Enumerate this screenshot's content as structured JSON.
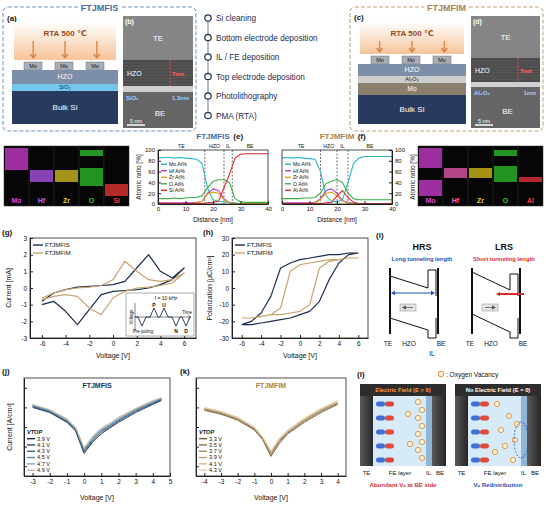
{
  "figure": {
    "a": {
      "label": "(a)",
      "box_title": "FTJMFIS",
      "anneal": "RTA 500 ℃",
      "top_electrode": "Mo",
      "fe": "HZO",
      "il": "SiO₂",
      "substrate": "Bulk Si"
    },
    "b": {
      "label": "(b)",
      "te": "TE",
      "fe": "HZO",
      "fe_thickness": "7nm",
      "il": "SiO₂",
      "il_thickness": "1.3nm",
      "be": "BE",
      "scale_bar": "5 nm"
    },
    "c": {
      "label": "(c)",
      "box_title": "FTJMFIM",
      "anneal": "RTA 500 ℃",
      "top_electrode": "Mo",
      "fe": "HZO",
      "il": "Al₂O₃",
      "bottom_electrode": "Mo",
      "substrate": "Bulk Si"
    },
    "d": {
      "label": "(d)",
      "te": "TE",
      "fe": "HZO",
      "fe_thickness": "7nm",
      "il": "Al₂O₃",
      "il_thickness": "1nm",
      "be": "BE",
      "scale_bar": "5 nm"
    },
    "process_flow": [
      "Si cleaning",
      "Bottom electrode deposition",
      "IL / FE deposition",
      "Top electrode deposition",
      "Photolithography",
      "PMA (RTA)"
    ],
    "eds_mfis": {
      "elements": [
        "Mo",
        "Hf",
        "Zr",
        "O",
        "Si"
      ],
      "colors": [
        "#e040e0",
        "#c060ff",
        "#e8d020",
        "#30d030",
        "#ff3a3a"
      ]
    },
    "eds_mfim": {
      "elements": [
        "Mo",
        "Hf",
        "Zr",
        "O",
        "Al"
      ],
      "colors": [
        "#e040e0",
        "#ff60c0",
        "#e8d020",
        "#30d030",
        "#ff3a3a"
      ]
    },
    "pund_inset": {
      "frequency": "f = 10 kHz",
      "pulses": [
        "P",
        "U",
        "N",
        "D"
      ],
      "pre_poling": "Pre-poling",
      "y_label": "Voltage",
      "x_label": "Time"
    },
    "i": {
      "label": "(i)",
      "hrs": {
        "title": "HRS",
        "note": "Long tunneling length",
        "te": "TE",
        "fe": "HZO",
        "be": "BE",
        "il": "IL"
      },
      "lrs": {
        "title": "LRS",
        "note": "Short tunneling length",
        "te": "TE",
        "fe": "HZO",
        "be": "BE"
      }
    },
    "l": {
      "label": "(l)",
      "key": ": Oxygen Vacancy",
      "left": {
        "title": "Electric Field (E > 0)",
        "te": "TE",
        "fe": "FE layer",
        "il": "IL",
        "be": "BE",
        "note": "Abundant Vₒ at BE side"
      },
      "right": {
        "title": "No Electric Field (E = 0)",
        "te": "TE",
        "fe": "FE layer",
        "il": "IL",
        "be": "BE",
        "note": "Vₒ Redistribution"
      }
    }
  },
  "chart_data": [
    {
      "type": "line",
      "panel": "(e)",
      "title": "FTJMFIS",
      "color": "#3a6ea5",
      "x_label": "Distance [nm]",
      "y_label": "Atomic ratio [%]",
      "x": [
        0,
        2,
        4,
        6,
        8,
        10,
        12,
        14,
        16,
        18,
        20,
        22,
        24,
        26,
        28,
        30,
        32,
        34,
        36,
        38,
        40
      ],
      "series": [
        {
          "name": "Mo At%",
          "color": "#2ab7c9",
          "values": [
            85,
            86,
            86,
            85,
            86,
            85,
            84,
            83,
            75,
            30,
            8,
            5,
            4,
            3,
            2,
            1,
            1,
            1,
            1,
            1,
            1
          ]
        },
        {
          "name": "Hf At%",
          "color": "#c03cc0",
          "values": [
            2,
            2,
            2,
            2,
            2,
            2,
            2,
            3,
            5,
            20,
            28,
            25,
            10,
            2,
            1,
            1,
            1,
            1,
            1,
            1,
            1
          ]
        },
        {
          "name": "Zr At%",
          "color": "#e0a21a",
          "values": [
            1,
            1,
            1,
            1,
            1,
            1,
            1,
            2,
            5,
            18,
            22,
            20,
            8,
            2,
            1,
            1,
            1,
            1,
            1,
            1,
            1
          ]
        },
        {
          "name": "O At%",
          "color": "#3cb043",
          "values": [
            10,
            10,
            10,
            11,
            10,
            11,
            12,
            12,
            15,
            30,
            42,
            45,
            45,
            40,
            10,
            4,
            3,
            3,
            3,
            3,
            3
          ]
        },
        {
          "name": "Si At%",
          "color": "#e0302c",
          "values": [
            2,
            1,
            1,
            1,
            1,
            1,
            1,
            1,
            1,
            2,
            3,
            5,
            30,
            55,
            85,
            92,
            93,
            93,
            93,
            93,
            93
          ]
        }
      ],
      "regions": [
        {
          "label": "TE",
          "start": 0,
          "end": 17
        },
        {
          "label": "HZO",
          "start": 17,
          "end": 24
        },
        {
          "label": "IL",
          "start": 24,
          "end": 27
        },
        {
          "label": "BE",
          "start": 27,
          "end": 40
        }
      ],
      "xlim": [
        0,
        40
      ],
      "ylim": [
        0,
        100
      ],
      "xticks": [
        0,
        10,
        20,
        30,
        40
      ],
      "yticks": [
        0,
        20,
        40,
        60,
        80,
        100
      ],
      "legend": "upper left"
    },
    {
      "type": "line",
      "panel": "(f)",
      "title": "FTJMFIM",
      "color": "#a8834e",
      "x_label": "Distance [nm]",
      "y_label": "Atomic ratio [%]",
      "x": [
        0,
        2,
        4,
        6,
        8,
        10,
        12,
        14,
        16,
        18,
        20,
        22,
        24,
        26,
        28,
        30,
        32,
        34,
        36,
        38,
        40
      ],
      "series": [
        {
          "name": "Mo At%",
          "color": "#2ab7c9",
          "values": [
            85,
            86,
            85,
            86,
            85,
            84,
            83,
            60,
            15,
            5,
            4,
            8,
            40,
            75,
            85,
            88,
            88,
            88,
            88,
            88,
            88
          ]
        },
        {
          "name": "Hf At%",
          "color": "#c03cc0",
          "values": [
            2,
            2,
            2,
            2,
            2,
            2,
            3,
            10,
            25,
            28,
            20,
            6,
            3,
            1,
            1,
            1,
            1,
            1,
            1,
            1,
            1
          ]
        },
        {
          "name": "Zr At%",
          "color": "#e0a21a",
          "values": [
            1,
            1,
            1,
            1,
            1,
            1,
            2,
            8,
            20,
            22,
            15,
            5,
            2,
            1,
            1,
            1,
            1,
            1,
            1,
            1,
            1
          ]
        },
        {
          "name": "O At%",
          "color": "#3cb043",
          "values": [
            10,
            10,
            10,
            10,
            11,
            11,
            12,
            20,
            38,
            42,
            45,
            40,
            20,
            10,
            8,
            8,
            8,
            8,
            8,
            8,
            8
          ]
        },
        {
          "name": "Al At%",
          "color": "#e0302c",
          "values": [
            1,
            1,
            1,
            1,
            1,
            1,
            1,
            1,
            2,
            3,
            15,
            25,
            12,
            3,
            1,
            1,
            1,
            1,
            1,
            1,
            1
          ]
        }
      ],
      "regions": [
        {
          "label": "TE",
          "start": 0,
          "end": 14
        },
        {
          "label": "HZO",
          "start": 14,
          "end": 20
        },
        {
          "label": "IL",
          "start": 20,
          "end": 24
        },
        {
          "label": "BE",
          "start": 24,
          "end": 40
        }
      ],
      "xlim": [
        0,
        40
      ],
      "ylim": [
        0,
        100
      ],
      "xticks": [
        0,
        10,
        20,
        30,
        40
      ],
      "yticks": [
        0,
        20,
        40,
        60,
        80,
        100
      ],
      "legend": "upper left"
    },
    {
      "type": "line",
      "panel": "(g)",
      "x_label": "Voltage [V]",
      "y_label": "Current [mA]",
      "series": [
        {
          "name": "FTJMFIS",
          "color": "#1b2d4f",
          "x": [
            -6,
            -5,
            -4,
            -3,
            -2,
            -1,
            0,
            1,
            2,
            3,
            4,
            5,
            6,
            5,
            4,
            3,
            2,
            1,
            0,
            -1,
            -2,
            -3,
            -4,
            -5,
            -6
          ],
          "values": [
            -0.8,
            -0.3,
            -0.1,
            0.05,
            0.1,
            0.15,
            0.2,
            0.4,
            1.2,
            2.0,
            1.0,
            0.6,
            1.2,
            0.5,
            0.2,
            0.0,
            -0.1,
            -0.15,
            -0.2,
            -0.4,
            -1.3,
            -2.2,
            -1.4,
            -0.8,
            -1.0
          ]
        },
        {
          "name": "FTJMFIM",
          "color": "#c9a56e",
          "x": [
            -6,
            -5,
            -4,
            -3,
            -2,
            -1,
            0,
            1,
            2,
            3,
            4,
            5,
            6,
            5,
            4,
            3,
            2,
            1,
            0,
            -1,
            -2,
            -3,
            -4,
            -5,
            -6
          ],
          "values": [
            -0.6,
            -0.3,
            -0.1,
            0,
            0.05,
            0.15,
            0.5,
            1.6,
            1.0,
            0.5,
            0.4,
            0.5,
            0.9,
            0.3,
            0.15,
            0.05,
            0,
            -0.2,
            -0.6,
            -1.6,
            -1.2,
            -0.5,
            -0.4,
            -0.5,
            -0.7
          ]
        }
      ],
      "xlim": [
        -7,
        7
      ],
      "ylim": [
        -3,
        3
      ],
      "xticks": [
        -6,
        -4,
        -2,
        0,
        2,
        4,
        6
      ],
      "yticks": [
        -3,
        -2,
        -1,
        0,
        1,
        2,
        3
      ],
      "legend": "upper left"
    },
    {
      "type": "line",
      "panel": "(h)",
      "x_label": "Voltage [V]",
      "y_label": "Polarization [μC/cm²]",
      "series": [
        {
          "name": "FTJMFIS",
          "color": "#1b2d4f",
          "x": [
            -6,
            -5,
            -4,
            -3,
            -2,
            -1,
            0,
            1,
            2,
            3,
            4,
            5,
            6,
            5,
            4,
            3,
            2,
            1,
            0,
            -1,
            -2,
            -3,
            -4,
            -5,
            -6
          ],
          "values": [
            -22,
            -22,
            -21,
            -20,
            -19,
            -18,
            -16,
            -14,
            -8,
            5,
            15,
            20,
            21,
            21,
            20,
            20,
            19,
            18,
            17,
            15,
            12,
            -5,
            -15,
            -20,
            -22
          ]
        },
        {
          "name": "FTJMFIM",
          "color": "#c9a56e",
          "x": [
            -6,
            -5,
            -4,
            -3,
            -2,
            -1,
            0,
            1,
            2,
            3,
            4,
            5,
            6,
            5,
            4,
            3,
            2,
            1,
            0,
            -1,
            -2,
            -3,
            -4,
            -5,
            -6
          ],
          "values": [
            -18,
            -18,
            -17,
            -16,
            -16,
            -15,
            -14,
            -10,
            12,
            16,
            17,
            18,
            18,
            18,
            17,
            17,
            16,
            15,
            14,
            10,
            -12,
            -16,
            -17,
            -18,
            -18
          ]
        }
      ],
      "xlim": [
        -7,
        7
      ],
      "ylim": [
        -30,
        30
      ],
      "xticks": [
        -6,
        -4,
        -2,
        0,
        2,
        4,
        6
      ],
      "yticks": [
        -30,
        -20,
        -10,
        0,
        10,
        20,
        30
      ],
      "legend": "upper left"
    },
    {
      "type": "line",
      "panel": "(j)",
      "title": "FTJMFIS",
      "color": "#1b2d4f",
      "legend_title": "VTOP",
      "x_label": "Voltage [V]",
      "y_label": "Current [A/cm²]",
      "log": "y",
      "tick_labels": "x",
      "x": [
        -3,
        -2,
        -1,
        -0.5,
        0,
        0.5,
        1,
        1.5,
        2,
        3,
        4,
        4.5
      ],
      "series": [
        {
          "name": "3.9 V",
          "color": "#132a4a",
          "values": [
            0.01,
            0.003,
            0.0003,
            4e-05,
            2e-07,
            3e-06,
            2e-05,
            8e-05,
            0.0003,
            0.003,
            0.02,
            0.05
          ]
        },
        {
          "name": "4.1 V",
          "color": "#24476b",
          "values": [
            0.012,
            0.0035,
            0.00035,
            5e-05,
            3e-07,
            4e-06,
            3e-05,
            0.0001,
            0.0004,
            0.004,
            0.025,
            0.06
          ]
        },
        {
          "name": "4.3 V",
          "color": "#3a6789",
          "values": [
            0.014,
            0.004,
            0.0004,
            6e-05,
            4e-07,
            5e-06,
            4e-05,
            0.00013,
            0.0005,
            0.005,
            0.03,
            0.07
          ]
        },
        {
          "name": "4.5 V",
          "color": "#5d88a3",
          "values": [
            0.016,
            0.0045,
            0.0005,
            7e-05,
            5e-07,
            7e-06,
            5e-05,
            0.00016,
            0.0006,
            0.006,
            0.035,
            0.08
          ]
        },
        {
          "name": "4.7 V",
          "color": "#8eaab8",
          "values": [
            0.018,
            0.005,
            0.0006,
            8e-05,
            6e-07,
            9e-06,
            6e-05,
            0.0002,
            0.0008,
            0.007,
            0.04,
            0.09
          ]
        },
        {
          "name": "4.9 V",
          "color": "#c4b597",
          "values": [
            0.02,
            0.006,
            0.0007,
            0.0001,
            8e-07,
            1.2e-05,
            8e-05,
            0.00025,
            0.001,
            0.008,
            0.05,
            0.1
          ]
        }
      ],
      "xlim": [
        -3.5,
        5
      ],
      "ylim": [
        1e-09,
        10
      ],
      "xticks": [
        -3,
        -2,
        -1,
        0,
        1,
        2,
        3,
        4,
        5
      ],
      "yticks": [
        1e-08,
        1e-06,
        0.0001,
        0.01,
        1
      ],
      "legend": "lower left"
    },
    {
      "type": "line",
      "panel": "(k)",
      "title": "FTJMFIM",
      "color": "#a8834e",
      "legend_title": "VTOP",
      "x_label": "Voltage [V]",
      "log": "y",
      "tick_labels": "x",
      "x": [
        -4,
        -3,
        -2,
        -1,
        -0.5,
        0,
        0.5,
        1,
        2,
        3,
        4
      ],
      "series": [
        {
          "name": "3.3 V",
          "color": "#6e5636",
          "values": [
            0.005,
            0.002,
            0.0005,
            5e-05,
            5e-06,
            1e-07,
            2e-06,
            2e-05,
            0.0003,
            0.003,
            0.02
          ]
        },
        {
          "name": "3.5 V",
          "color": "#8a6e48",
          "values": [
            0.006,
            0.0024,
            0.0006,
            6e-05,
            6e-06,
            1.5e-07,
            3e-06,
            2.5e-05,
            0.0004,
            0.004,
            0.025
          ]
        },
        {
          "name": "3.7 V",
          "color": "#a6885d",
          "values": [
            0.007,
            0.0028,
            0.0007,
            7e-05,
            7e-06,
            2e-07,
            4e-06,
            3e-05,
            0.0005,
            0.005,
            0.03
          ]
        },
        {
          "name": "3.9 V",
          "color": "#bfa274",
          "values": [
            0.008,
            0.0032,
            0.0008,
            8e-05,
            8e-06,
            2.5e-07,
            5e-06,
            3.5e-05,
            0.0006,
            0.006,
            0.035
          ]
        },
        {
          "name": "4.1 V",
          "color": "#d2ba8f",
          "values": [
            0.009,
            0.0036,
            0.0009,
            9e-05,
            9e-06,
            3e-07,
            6e-06,
            4e-05,
            0.0007,
            0.007,
            0.04
          ]
        },
        {
          "name": "4.3 V",
          "color": "#e3d0ae",
          "values": [
            0.01,
            0.004,
            0.001,
            0.0001,
            1e-05,
            4e-07,
            7e-06,
            5e-05,
            0.0008,
            0.008,
            0.05
          ]
        }
      ],
      "xlim": [
        -4.5,
        4.5
      ],
      "ylim": [
        1e-09,
        10
      ],
      "xticks": [
        -4,
        -3,
        -2,
        -1,
        0,
        1,
        2,
        3,
        4
      ],
      "yticks": [
        1e-08,
        1e-06,
        0.0001,
        0.01,
        1
      ],
      "legend": "lower left"
    }
  ]
}
